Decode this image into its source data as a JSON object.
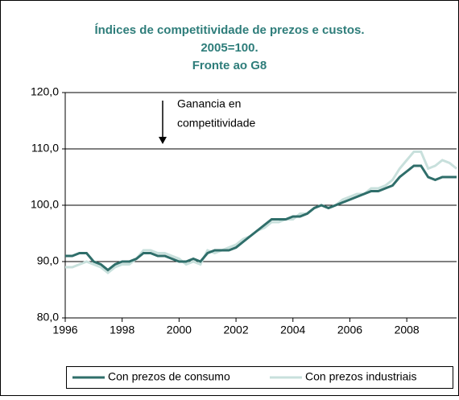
{
  "chart_data": {
    "type": "line",
    "title": [
      "Índices de competitividade de prezos e custos.",
      "2005=100.",
      "Fronte ao G8"
    ],
    "annotation": [
      "Ganancia en",
      "competitividade"
    ],
    "x": [
      1996,
      1996.25,
      1996.5,
      1996.75,
      1997,
      1997.25,
      1997.5,
      1997.75,
      1998,
      1998.25,
      1998.5,
      1998.75,
      1999,
      1999.25,
      1999.5,
      1999.75,
      2000,
      2000.25,
      2000.5,
      2000.75,
      2001,
      2001.25,
      2001.5,
      2001.75,
      2002,
      2002.25,
      2002.5,
      2002.75,
      2003,
      2003.25,
      2003.5,
      2003.75,
      2004,
      2004.25,
      2004.5,
      2004.75,
      2005,
      2005.25,
      2005.5,
      2005.75,
      2006,
      2006.25,
      2006.5,
      2006.75,
      2007,
      2007.25,
      2007.5,
      2007.75,
      2008,
      2008.25,
      2008.5,
      2008.75,
      2009,
      2009.25,
      2009.5,
      2009.75
    ],
    "series": [
      {
        "name": "Con prezos de consumo",
        "color": "#2f6e6a",
        "values": [
          91,
          91,
          91.5,
          91.5,
          90,
          89.5,
          88.5,
          89.5,
          90,
          90,
          90.5,
          91.5,
          91.5,
          91,
          91,
          90.5,
          90,
          90,
          90.5,
          90,
          91.5,
          92,
          92,
          92,
          92.5,
          93.5,
          94.5,
          95.5,
          96.5,
          97.5,
          97.5,
          97.5,
          98,
          98,
          98.5,
          99.5,
          100,
          99.5,
          100,
          100.5,
          101,
          101.5,
          102,
          102.5,
          102.5,
          103,
          103.5,
          105,
          106,
          107,
          107,
          105,
          104.5,
          105,
          105,
          105
        ]
      },
      {
        "name": "Con prezos industriais",
        "color": "#c8e0dc",
        "values": [
          89,
          89,
          89.5,
          90,
          89.5,
          89,
          88,
          89,
          89.5,
          89.5,
          90.5,
          92,
          92,
          91.5,
          91.5,
          91,
          90.5,
          89.5,
          90,
          89.5,
          92,
          91.5,
          92,
          92.5,
          93,
          94,
          94.5,
          95.5,
          96,
          97,
          97,
          97.5,
          97.5,
          98.5,
          98.5,
          99.5,
          100,
          99.5,
          100,
          101,
          101.5,
          102,
          102,
          103,
          103,
          103.5,
          104.5,
          106.5,
          108,
          109.5,
          109.5,
          106.5,
          107,
          108,
          107.5,
          106.5
        ]
      }
    ],
    "xlim": [
      1996,
      2009.75
    ],
    "xticks": [
      1996,
      1998,
      2000,
      2002,
      2004,
      2006,
      2008
    ],
    "ylim": [
      80,
      120
    ],
    "yticks": [
      {
        "value": 80,
        "label": "80,0"
      },
      {
        "value": 90,
        "label": "90,0"
      },
      {
        "value": 100,
        "label": "100,0"
      },
      {
        "value": 110,
        "label": "110,0"
      },
      {
        "value": 120,
        "label": "120,0"
      }
    ],
    "grid": true,
    "legend": "bottom"
  }
}
